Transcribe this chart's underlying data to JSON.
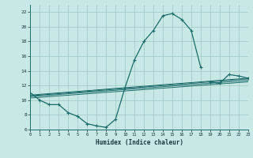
{
  "xlabel": "Humidex (Indice chaleur)",
  "xlim": [
    0,
    23
  ],
  "ylim": [
    6,
    23
  ],
  "yticks": [
    6,
    8,
    10,
    12,
    14,
    16,
    18,
    20,
    22
  ],
  "xticks": [
    0,
    1,
    2,
    3,
    4,
    5,
    6,
    7,
    8,
    9,
    10,
    11,
    12,
    13,
    14,
    15,
    16,
    17,
    18,
    19,
    20,
    21,
    22,
    23
  ],
  "bg_color": "#c8e8e5",
  "grid_color": "#9dc8c5",
  "line_color": "#1a6b6b",
  "curve1_x": [
    0,
    1,
    2,
    3,
    4,
    5,
    6,
    7,
    8,
    9,
    10,
    11,
    12,
    13,
    14,
    15,
    16,
    17,
    18
  ],
  "curve1_y": [
    11.0,
    10.0,
    9.4,
    9.4,
    8.3,
    7.8,
    6.8,
    6.5,
    6.3,
    7.4,
    11.7,
    15.5,
    18.0,
    19.5,
    21.5,
    21.8,
    21.0,
    19.5,
    14.5
  ],
  "curve2_x": [
    19,
    20,
    21,
    22,
    23
  ],
  "curve2_y": [
    12.5,
    12.3,
    13.5,
    13.3,
    13.0
  ],
  "trend1_x": [
    0,
    23
  ],
  "trend1_y": [
    10.7,
    13.0
  ],
  "trend2_x": [
    0,
    23
  ],
  "trend2_y": [
    10.5,
    12.7
  ],
  "trend3_x": [
    0,
    23
  ],
  "trend3_y": [
    10.3,
    12.5
  ],
  "trend4_x": [
    0,
    23
  ],
  "trend4_y": [
    10.6,
    12.9
  ]
}
